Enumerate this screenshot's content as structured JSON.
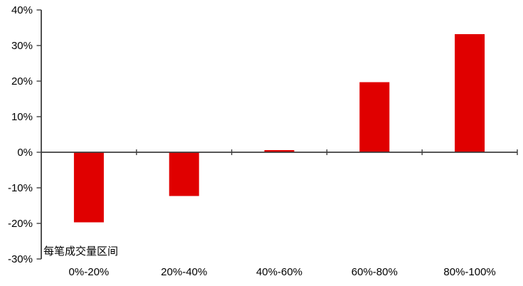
{
  "chart_data": {
    "type": "bar",
    "title": "",
    "xlabel": "每笔成交量区间",
    "ylabel": "",
    "categories": [
      "0%-20%",
      "20%-40%",
      "40%-60%",
      "60%-80%",
      "80%-100%"
    ],
    "values": [
      -19.7,
      -12.3,
      0.6,
      19.7,
      33.2
    ],
    "ylim": [
      -30,
      40
    ],
    "ytick_step": 10,
    "ytick_values": [
      40,
      30,
      20,
      10,
      0,
      -10,
      -20,
      -30
    ],
    "ytick_labels": [
      "40%",
      "30%",
      "20%",
      "10%",
      "0%",
      "-10%",
      "-20%",
      "-30%"
    ],
    "grid": false,
    "legend": null,
    "bar_color": "#e00000",
    "axis_color": "#3f3f3f",
    "text_color": "#000000",
    "background": "#ffffff"
  }
}
